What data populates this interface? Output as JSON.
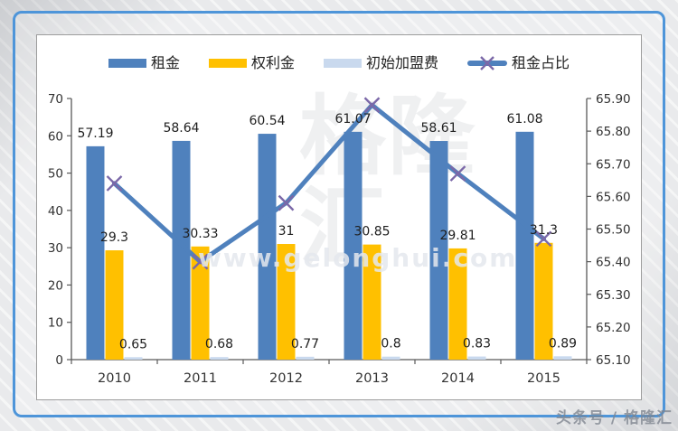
{
  "frame": {
    "accent_color": "#4e95d9"
  },
  "footer": {
    "credit": "头条号 / 格隆汇"
  },
  "watermarks": {
    "site": "www.gelonghui.com",
    "logo": "格隆汇"
  },
  "colors": {
    "bar_rent": "#4F81BD",
    "bar_royalty": "#FFC000",
    "bar_fee": "#C9D9EE",
    "line": "#4F81BD",
    "marker": "#7B68A8",
    "axis": "#595959",
    "tick_text": "#333333",
    "data_label": "#1f1f1f",
    "panel_border": "#9d9d9d"
  },
  "chart_data": {
    "type": "combo-bar-line",
    "categories": [
      "2010",
      "2011",
      "2012",
      "2013",
      "2014",
      "2015"
    ],
    "series": [
      {
        "key": "rent",
        "name": "租金",
        "type": "bar",
        "axis": "left",
        "color": "#4F81BD",
        "values": [
          57.19,
          58.64,
          60.54,
          61.07,
          58.61,
          61.08
        ],
        "labels": [
          "57.19",
          "58.64",
          "60.54",
          "61.07",
          "58.61",
          "61.08"
        ]
      },
      {
        "key": "royalty",
        "name": "权利金",
        "type": "bar",
        "axis": "left",
        "color": "#FFC000",
        "values": [
          29.3,
          30.33,
          31,
          30.85,
          29.81,
          31.3
        ],
        "labels": [
          "29.3",
          "30.33",
          "31",
          "30.85",
          "29.81",
          "31.3"
        ]
      },
      {
        "key": "initial-franchise-fee",
        "name": "初始加盟费",
        "type": "bar",
        "axis": "left",
        "color": "#C9D9EE",
        "values": [
          0.65,
          0.68,
          0.77,
          0.8,
          0.83,
          0.89
        ],
        "labels": [
          "0.65",
          "0.68",
          "0.77",
          "0.8",
          "0.83",
          "0.89"
        ]
      },
      {
        "key": "rent-ratio",
        "name": "租金占比",
        "type": "line",
        "axis": "right",
        "color": "#4F81BD",
        "marker": "x",
        "marker_color": "#7B68A8",
        "values": [
          65.64,
          65.4,
          65.58,
          65.88,
          65.67,
          65.47
        ],
        "labels": null
      }
    ],
    "left_axis": {
      "min": 0,
      "max": 70,
      "step": 10,
      "tick_labels": [
        "0",
        "10",
        "20",
        "30",
        "40",
        "50",
        "60",
        "70"
      ]
    },
    "right_axis": {
      "min": 65.1,
      "max": 65.9,
      "step": 0.1,
      "tick_labels": [
        "65.10",
        "65.20",
        "65.30",
        "65.40",
        "65.50",
        "65.60",
        "65.70",
        "65.80",
        "65.90"
      ]
    },
    "legend_position": "top",
    "gridlines": false
  }
}
